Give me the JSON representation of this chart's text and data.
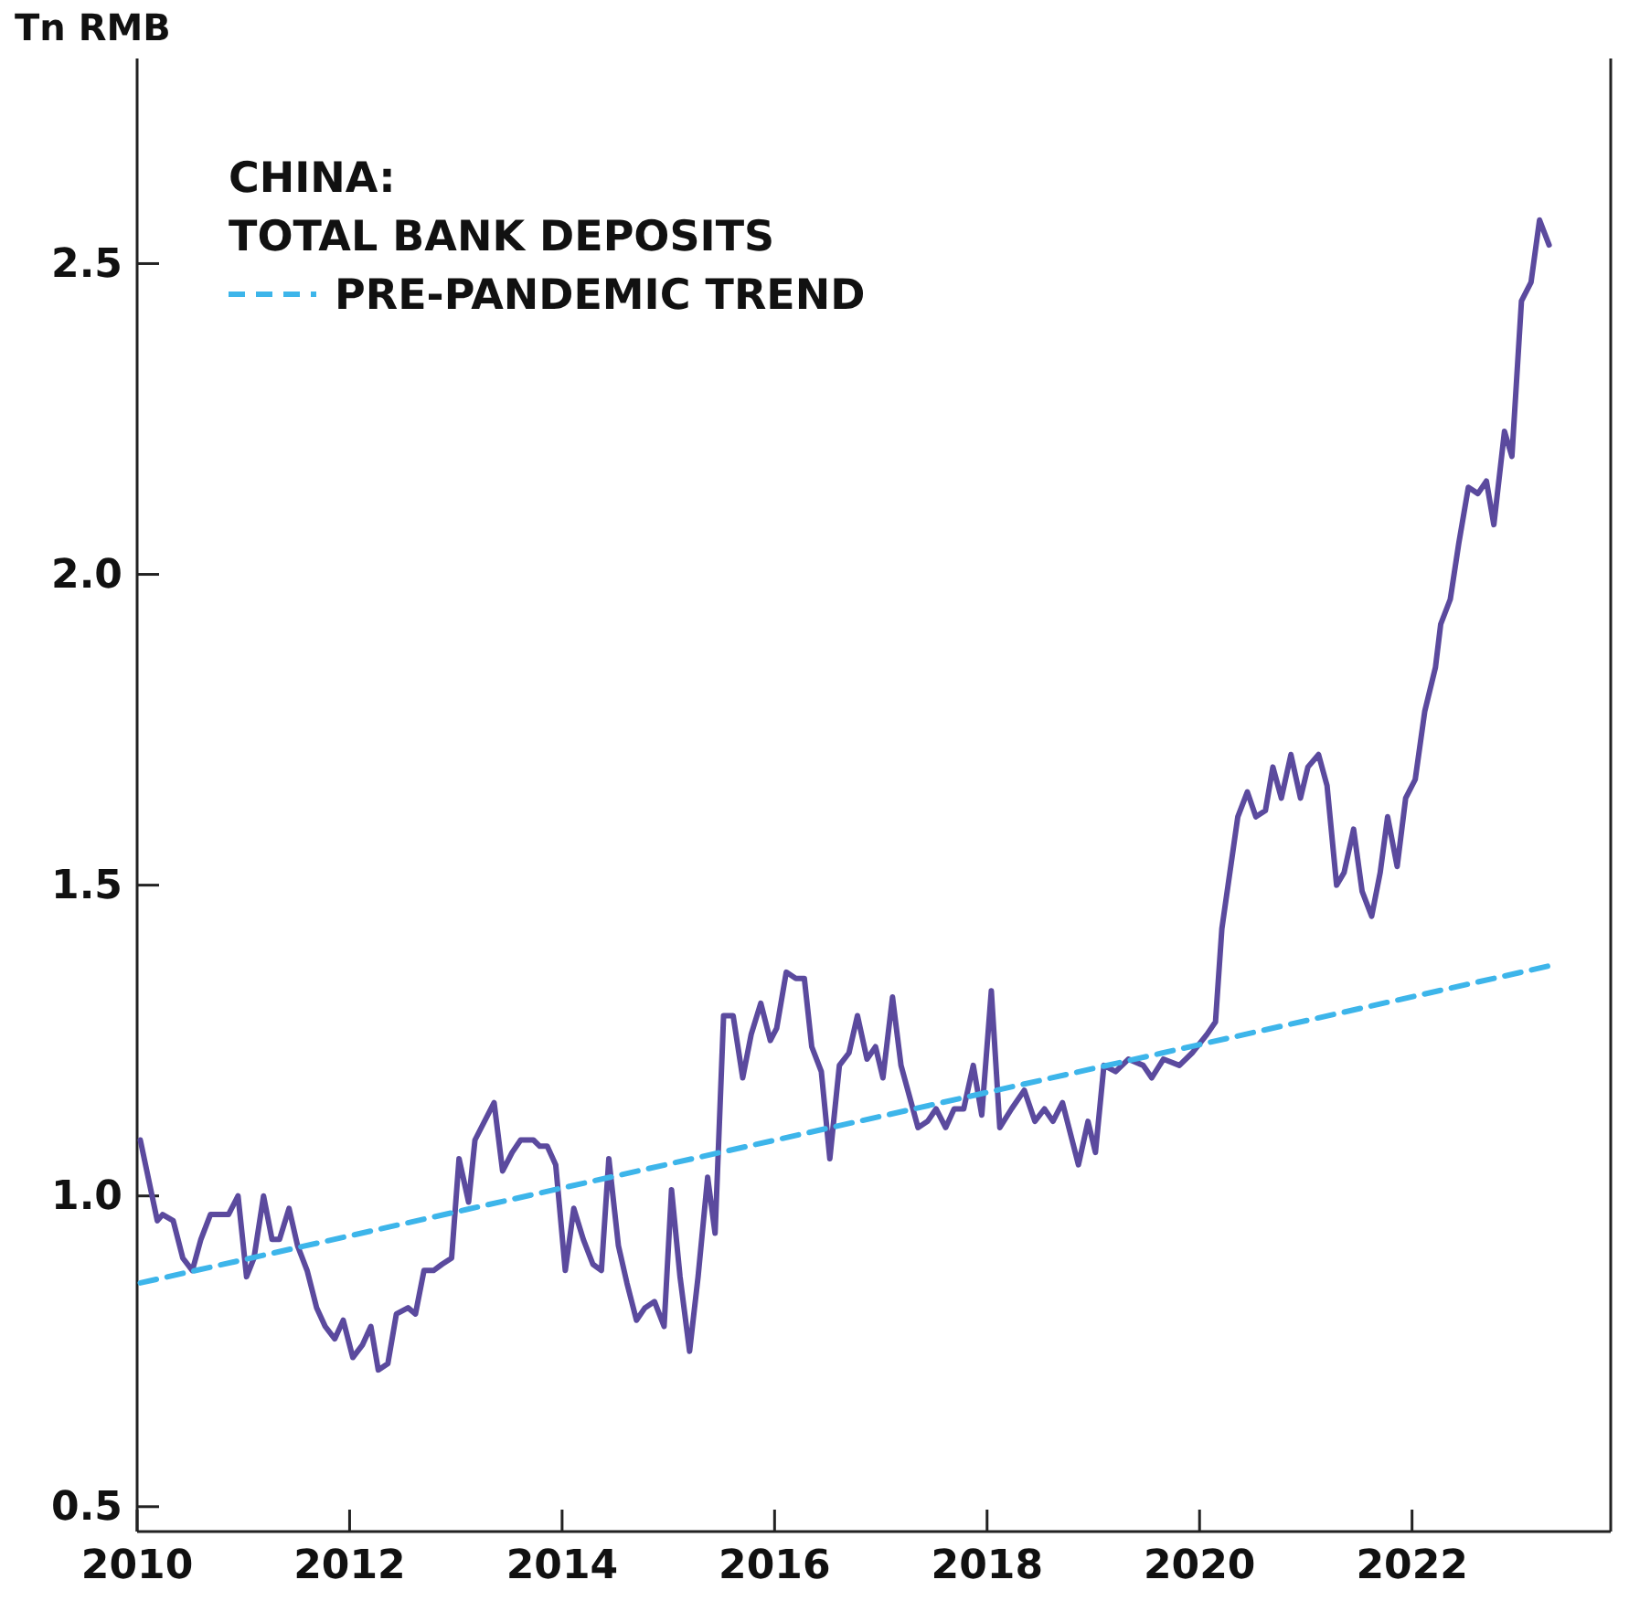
{
  "chart_data": {
    "type": "line",
    "title": "CHINA: TOTAL BANK DEPOSITS",
    "ylabel": "Tn RMB",
    "xlim": [
      2010,
      2023.87
    ],
    "xticks": [
      2010,
      2012,
      2014,
      2016,
      2018,
      2020,
      2022
    ],
    "ylim": [
      0.46,
      2.83
    ],
    "yticks": [
      {
        "value": 0.5,
        "label": "0.5"
      },
      {
        "value": 1,
        "label": "1.0"
      },
      {
        "value": 1.5,
        "label": "1.5"
      },
      {
        "value": 2,
        "label": "2.0"
      },
      {
        "value": 2.5,
        "label": "2.5"
      }
    ],
    "legend": "top left",
    "series": [
      {
        "color": "#5b4a9e",
        "line_style": "solid",
        "x": [
          2010.03,
          2010.19,
          2010.24,
          2010.34,
          2010.43,
          2010.52,
          2010.6,
          2010.69,
          2010.77,
          2010.86,
          2010.95,
          2011.03,
          2011.1,
          2011.19,
          2011.27,
          2011.34,
          2011.43,
          2011.51,
          2011.6,
          2011.69,
          2011.77,
          2011.86,
          2011.94,
          2012.03,
          2012.12,
          2012.2,
          2012.27,
          2012.36,
          2012.44,
          2012.55,
          2012.62,
          2012.7,
          2012.79,
          2012.87,
          2012.96,
          2013.03,
          2013.12,
          2013.18,
          2013.36,
          2013.44,
          2013.53,
          2013.61,
          2013.73,
          2013.79,
          2013.86,
          2013.94,
          2014.03,
          2014.11,
          2014.2,
          2014.29,
          2014.37,
          2014.44,
          2014.53,
          2014.61,
          2014.7,
          2014.78,
          2014.87,
          2014.96,
          2015.03,
          2015.11,
          2015.2,
          2015.28,
          2015.37,
          2015.44,
          2015.52,
          2015.61,
          2015.7,
          2015.78,
          2015.87,
          2015.96,
          2016.02,
          2016.11,
          2016.2,
          2016.28,
          2016.35,
          2016.44,
          2016.52,
          2016.61,
          2016.7,
          2016.78,
          2016.87,
          2016.95,
          2017.02,
          2017.11,
          2017.19,
          2017.35,
          2017.44,
          2017.52,
          2017.61,
          2017.69,
          2017.78,
          2017.87,
          2017.95,
          2018.04,
          2018.12,
          2018.23,
          2018.35,
          2018.45,
          2018.54,
          2018.62,
          2018.71,
          2018.8,
          2018.86,
          2018.95,
          2019.02,
          2019.1,
          2019.21,
          2019.33,
          2019.47,
          2019.55,
          2019.66,
          2019.81,
          2019.93,
          2020.07,
          2020.15,
          2020.21,
          2020.36,
          2020.45,
          2020.53,
          2020.62,
          2020.69,
          2020.77,
          2020.86,
          2020.95,
          2021.02,
          2021.12,
          2021.2,
          2021.29,
          2021.36,
          2021.45,
          2021.53,
          2021.62,
          2021.7,
          2021.77,
          2021.86,
          2021.94,
          2022.03,
          2022.12,
          2022.22,
          2022.27,
          2022.36,
          2022.44,
          2022.53,
          2022.62,
          2022.7,
          2022.77,
          2022.87,
          2022.94,
          2023.03,
          2023.12,
          2023.2,
          2023.29
        ],
        "values": [
          1.09,
          0.96,
          0.97,
          0.96,
          0.9,
          0.88,
          0.93,
          0.97,
          0.97,
          0.97,
          1.0,
          0.87,
          0.9,
          1.0,
          0.93,
          0.93,
          0.98,
          0.92,
          0.88,
          0.82,
          0.79,
          0.77,
          0.8,
          0.74,
          0.76,
          0.79,
          0.72,
          0.73,
          0.81,
          0.82,
          0.81,
          0.88,
          0.88,
          0.89,
          0.9,
          1.06,
          0.99,
          1.09,
          1.15,
          1.04,
          1.07,
          1.09,
          1.09,
          1.08,
          1.08,
          1.05,
          0.88,
          0.98,
          0.93,
          0.89,
          0.88,
          1.06,
          0.92,
          0.86,
          0.8,
          0.82,
          0.83,
          0.79,
          1.01,
          0.87,
          0.75,
          0.87,
          1.03,
          0.94,
          1.29,
          1.29,
          1.19,
          1.26,
          1.31,
          1.25,
          1.27,
          1.36,
          1.35,
          1.35,
          1.24,
          1.2,
          1.06,
          1.21,
          1.23,
          1.29,
          1.22,
          1.24,
          1.19,
          1.32,
          1.21,
          1.11,
          1.12,
          1.14,
          1.11,
          1.14,
          1.14,
          1.21,
          1.13,
          1.33,
          1.11,
          1.14,
          1.17,
          1.12,
          1.14,
          1.12,
          1.15,
          1.09,
          1.05,
          1.12,
          1.07,
          1.21,
          1.2,
          1.22,
          1.21,
          1.19,
          1.22,
          1.21,
          1.23,
          1.26,
          1.28,
          1.43,
          1.61,
          1.65,
          1.61,
          1.62,
          1.69,
          1.64,
          1.71,
          1.64,
          1.69,
          1.71,
          1.66,
          1.5,
          1.52,
          1.59,
          1.49,
          1.45,
          1.52,
          1.61,
          1.53,
          1.64,
          1.67,
          1.78,
          1.85,
          1.92,
          1.96,
          2.05,
          2.14,
          2.13,
          2.15,
          2.08,
          2.23,
          2.19,
          2.44,
          2.47,
          2.57,
          2.53
        ]
      },
      {
        "name": "PRE-PANDEMIC TREND",
        "color": "#3db5ea",
        "line_style": "dashed",
        "x": [
          2010.03,
          2023.29
        ],
        "values": [
          0.86,
          1.37
        ]
      }
    ]
  }
}
